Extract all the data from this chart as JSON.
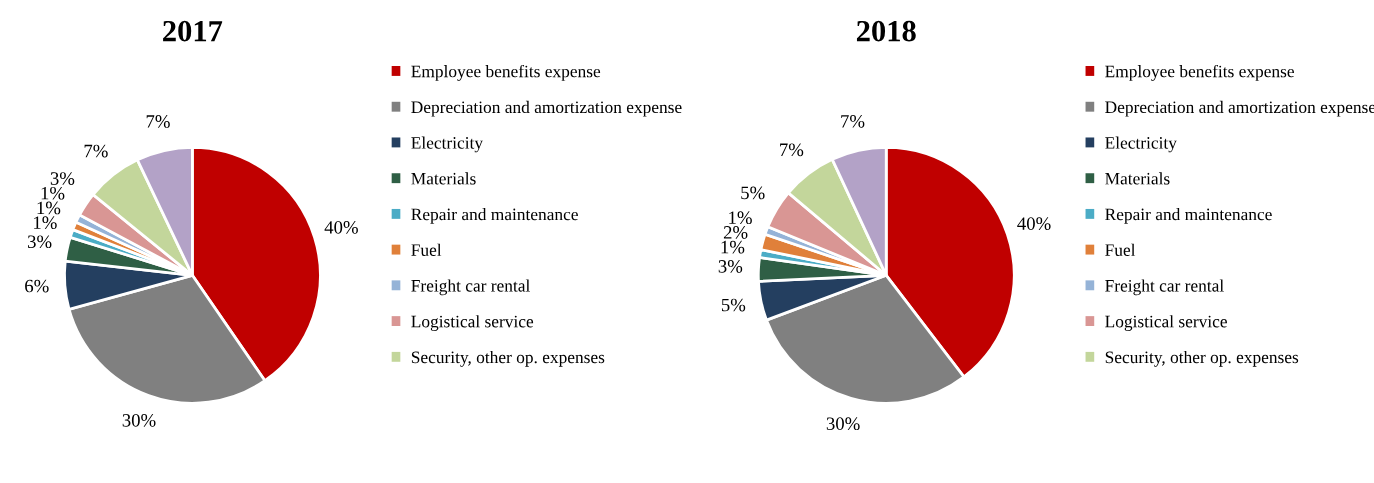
{
  "chart_data": [
    {
      "type": "pie",
      "title": "2017",
      "categories": [
        "Employee benefits expense",
        "Depreciation and amortization expense",
        "Electricity",
        "Materials",
        "Repair and maintenance",
        "Fuel",
        "Freight car rental",
        "Logistical service",
        "Security, other op. expenses",
        null
      ],
      "values": [
        40,
        30,
        6,
        3,
        1,
        1,
        1,
        3,
        7,
        7
      ],
      "value_labels": [
        "40%",
        "30%",
        "6%",
        "3%",
        "1%",
        "1%",
        "1%",
        "3%",
        "7%",
        "7%"
      ],
      "colors": [
        "#c00000",
        "#808080",
        "#243f60",
        "#2f5f45",
        "#4bacc6",
        "#e0803a",
        "#95b3d7",
        "#d99694",
        "#c3d69b",
        "#b3a2c7"
      ],
      "legend": "right"
    },
    {
      "type": "pie",
      "title": "2018",
      "categories": [
        "Employee benefits expense",
        "Depreciation and amortization expense",
        "Electricity",
        "Materials",
        "Repair and maintenance",
        "Fuel",
        "Freight car rental",
        "Logistical service",
        "Security, other op. expenses",
        null
      ],
      "values": [
        40,
        30,
        5,
        3,
        1,
        2,
        1,
        5,
        7,
        7
      ],
      "value_labels": [
        "40%",
        "30%",
        "5%",
        "3%",
        "1%",
        "2%",
        "1%",
        "5%",
        "7%",
        "7%"
      ],
      "colors": [
        "#c00000",
        "#808080",
        "#243f60",
        "#2f5f45",
        "#4bacc6",
        "#e0803a",
        "#95b3d7",
        "#d99694",
        "#c3d69b",
        "#b3a2c7"
      ],
      "legend": "right"
    }
  ]
}
